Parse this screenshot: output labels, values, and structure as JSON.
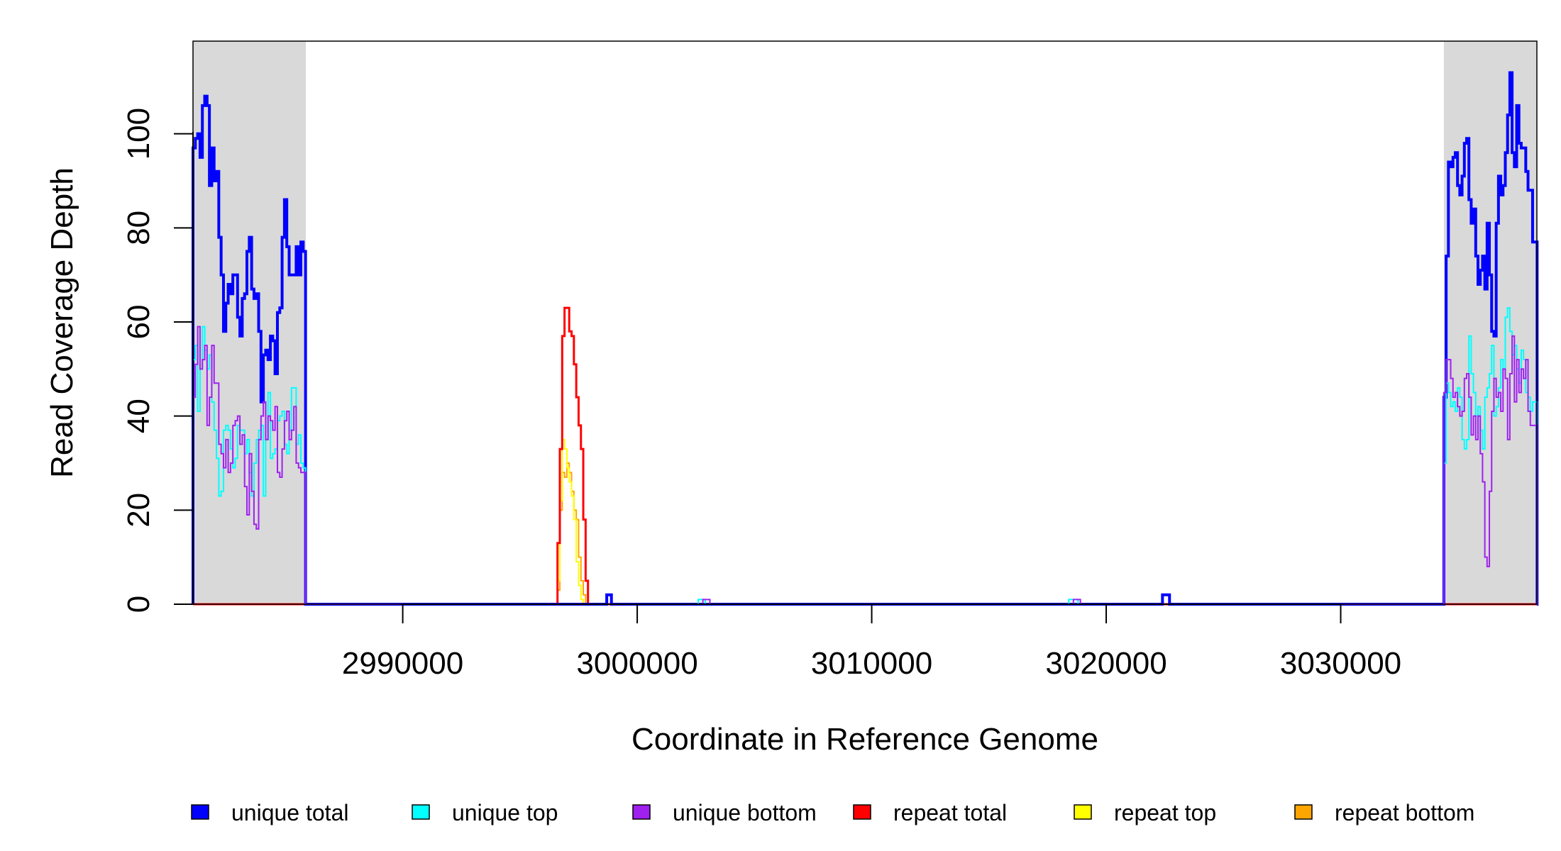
{
  "chart_data": {
    "type": "line",
    "step": true,
    "xlabel": "Coordinate in Reference Genome",
    "ylabel": "Read Coverage Depth",
    "xlim": [
      2981056,
      3038366
    ],
    "ylim": [
      0,
      119.7
    ],
    "xticks": [
      2990000,
      3000000,
      3010000,
      3020000,
      3030000
    ],
    "xtick_labels": [
      "2990000",
      "3000000",
      "3010000",
      "3020000",
      "3030000"
    ],
    "yticks": [
      0,
      20,
      40,
      60,
      80,
      100
    ],
    "ytick_labels": [
      "0",
      "20",
      "40",
      "60",
      "80",
      "100"
    ],
    "shaded_regions": [
      [
        2981056,
        2985870
      ],
      [
        3034400,
        3038366
      ]
    ],
    "shade_color": "#d9d9d9",
    "grid": false,
    "legend_position": "bottom",
    "series": [
      {
        "name": "repeat bottom",
        "color": "#ffa500",
        "width": 2,
        "segments": [
          {
            "start": 2996600,
            "bin": 100,
            "values": [
              3,
              20,
              28,
              27,
              30,
              28,
              24,
              20,
              18,
              10,
              5,
              2
            ]
          }
        ]
      },
      {
        "name": "repeat top",
        "color": "#ffff00",
        "width": 2,
        "segments": [
          {
            "start": 2996600,
            "bin": 100,
            "values": [
              5,
              22,
              35,
              33,
              29,
              26,
              23,
              18,
              9,
              4,
              1
            ]
          }
        ]
      },
      {
        "name": "repeat total",
        "color": "#ff0000",
        "width": 3,
        "segments": [
          {
            "start": 2996600,
            "bin": 100,
            "values": [
              13,
              33,
              57,
              63,
              63,
              58,
              57,
              51,
              44,
              38,
              33,
              18,
              5
            ]
          }
        ]
      },
      {
        "name": "unique total",
        "color": "#0000ff",
        "width": 4,
        "segments": [
          {
            "start": 2981056,
            "bin": 100,
            "values": [
              97,
              99,
              100,
              95,
              106,
              108,
              106,
              89,
              97,
              90,
              92,
              78,
              70,
              58,
              64,
              68,
              66,
              70,
              70,
              61,
              57,
              65,
              66,
              75,
              78,
              67,
              65,
              66,
              58,
              43,
              53,
              54,
              52,
              57,
              56,
              49,
              62,
              63,
              78,
              86,
              76,
              70,
              70,
              70,
              76,
              70,
              77,
              75
            ]
          },
          {
            "start": 2998700,
            "bin": 200,
            "values": [
              2
            ]
          },
          {
            "start": 3022400,
            "bin": 300,
            "values": [
              2
            ]
          },
          {
            "start": 3034400,
            "bin": 97,
            "values": [
              44,
              74,
              94,
              93,
              95,
              96,
              89,
              87,
              91,
              98,
              99,
              86,
              81,
              84,
              74,
              68,
              71,
              74,
              67,
              81,
              70,
              58,
              57,
              81,
              91,
              87,
              89,
              96,
              104,
              113,
              96,
              93,
              106,
              98,
              97,
              97,
              92,
              88,
              88,
              77,
              77
            ]
          }
        ]
      },
      {
        "name": "unique top",
        "color": "#00ffff",
        "width": 2,
        "segments": [
          {
            "start": 2981056,
            "bin": 100,
            "values": [
              52,
              55,
              41,
              50,
              59,
              54,
              50,
              53,
              43,
              37,
              31,
              23,
              24,
              37,
              38,
              37,
              33,
              29,
              31,
              38,
              37,
              37,
              32,
              35,
              28,
              23,
              30,
              35,
              37,
              38,
              23,
              35,
              45,
              31,
              32,
              33,
              39,
              40,
              41,
              34,
              32,
              37,
              46,
              46,
              34,
              36,
              30,
              29
            ]
          },
          {
            "start": 3002600,
            "bin": 300,
            "values": [
              1
            ]
          },
          {
            "start": 3018400,
            "bin": 400,
            "values": [
              1
            ]
          },
          {
            "start": 3034400,
            "bin": 97,
            "values": [
              30,
              47,
              45,
              42,
              43,
              41,
              46,
              44,
              35,
              33,
              35,
              57,
              49,
              45,
              40,
              42,
              37,
              33,
              44,
              46,
              49,
              55,
              40,
              42,
              46,
              52,
              50,
              61,
              63,
              58,
              53,
              55,
              50,
              47,
              54,
              52,
              45,
              44,
              41,
              43,
              43
            ]
          }
        ]
      },
      {
        "name": "unique bottom",
        "color": "#a020f0",
        "width": 2,
        "segments": [
          {
            "start": 2981056,
            "bin": 100,
            "values": [
              44,
              51,
              59,
              50,
              52,
              55,
              38,
              44,
              55,
              47,
              47,
              34,
              32,
              29,
              35,
              28,
              30,
              38,
              39,
              40,
              34,
              36,
              25,
              19,
              32,
              24,
              17,
              16,
              35,
              40,
              43,
              35,
              40,
              39,
              37,
              42,
              28,
              27,
              33,
              39,
              41,
              35,
              37,
              42,
              30,
              29,
              28,
              28
            ]
          },
          {
            "start": 3002800,
            "bin": 300,
            "values": [
              1
            ]
          },
          {
            "start": 3018600,
            "bin": 300,
            "values": [
              1
            ]
          },
          {
            "start": 3034400,
            "bin": 97,
            "values": [
              45,
              52,
              52,
              48,
              44,
              45,
              42,
              40,
              41,
              48,
              49,
              44,
              36,
              40,
              35,
              40,
              32,
              26,
              10,
              8,
              24,
              41,
              48,
              44,
              45,
              41,
              50,
              48,
              35,
              49,
              57,
              43,
              52,
              45,
              50,
              48,
              52,
              41,
              38,
              38,
              38
            ]
          }
        ]
      }
    ],
    "legend": [
      {
        "label": "unique total",
        "color": "#0000ff"
      },
      {
        "label": "unique top",
        "color": "#00ffff"
      },
      {
        "label": "unique bottom",
        "color": "#a020f0"
      },
      {
        "label": "repeat total",
        "color": "#ff0000"
      },
      {
        "label": "repeat top",
        "color": "#ffff00"
      },
      {
        "label": "repeat bottom",
        "color": "#ffa500"
      }
    ]
  }
}
